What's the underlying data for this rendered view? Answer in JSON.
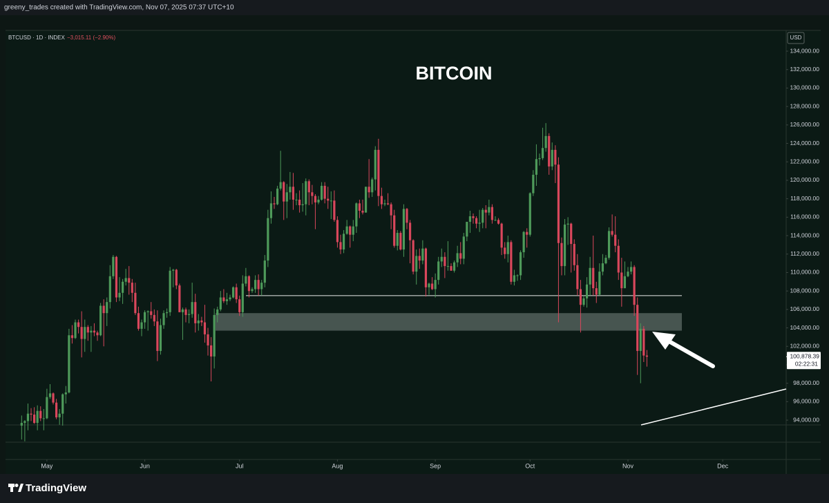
{
  "header": {
    "credit": "greeny_trades created with TradingView.com, Nov 07, 2025 07:37 UTC+10",
    "symbol": "BTCUSD · 1D · INDEX",
    "change": "−3,015.11 (−2.90%)",
    "currency": "USD",
    "countdown": "02:22:31",
    "brand": "TradingView"
  },
  "chart_data": {
    "type": "candlestick",
    "title": "BITCOIN",
    "up_color": "#4e9a5a",
    "down_color": "#d9475c",
    "xlim": [
      -5.1,
      242.1
    ],
    "xticks": [
      {
        "value": 8,
        "label": "May"
      },
      {
        "value": 39,
        "label": "Jun"
      },
      {
        "value": 69,
        "label": "Jul"
      },
      {
        "value": 100,
        "label": "Aug"
      },
      {
        "value": 131,
        "label": "Sep"
      },
      {
        "value": 161,
        "label": "Oct"
      },
      {
        "value": 192,
        "label": "Nov"
      },
      {
        "value": 222,
        "label": "Dec"
      }
    ],
    "ylim": [
      93480,
      136250
    ],
    "yticks": [
      {
        "value": 94000,
        "label": "94,000.00"
      },
      {
        "value": 96000,
        "label": "96,000.00"
      },
      {
        "value": 98000,
        "label": "98,000.00"
      },
      {
        "value": 100000,
        "label": "100,000.00"
      },
      {
        "value": 102000,
        "label": "102,000.00"
      },
      {
        "value": 104000,
        "label": "104,000.00"
      },
      {
        "value": 106000,
        "label": "106,000.00"
      },
      {
        "value": 108000,
        "label": "108,000.00"
      },
      {
        "value": 110000,
        "label": "110,000.00"
      },
      {
        "value": 112000,
        "label": "112,000.00"
      },
      {
        "value": 114000,
        "label": "114,000.00"
      },
      {
        "value": 116000,
        "label": "116,000.00"
      },
      {
        "value": 118000,
        "label": "118,000.00"
      },
      {
        "value": 120000,
        "label": "120,000.00"
      },
      {
        "value": 122000,
        "label": "122,000.00"
      },
      {
        "value": 124000,
        "label": "124,000.00"
      },
      {
        "value": 126000,
        "label": "126,000.00"
      },
      {
        "value": 128000,
        "label": "128,000.00"
      },
      {
        "value": 130000,
        "label": "130,000.00"
      },
      {
        "value": 132000,
        "label": "132,000.00"
      },
      {
        "value": 134000,
        "label": "134,000.00"
      }
    ],
    "last_price": {
      "value": 100878.39,
      "label": "100,878.39"
    },
    "hline": 107500,
    "zone": [
      103700,
      105600
    ],
    "candles": [
      [
        93400,
        94500,
        91900,
        93700
      ],
      [
        93700,
        94000,
        91700,
        93900
      ],
      [
        93900,
        95800,
        92900,
        94700
      ],
      [
        94700,
        95300,
        93900,
        94600
      ],
      [
        94600,
        95400,
        93600,
        93700
      ],
      [
        93700,
        95600,
        92900,
        95000
      ],
      [
        95000,
        95500,
        93900,
        94200
      ],
      [
        94200,
        95200,
        92900,
        94200
      ],
      [
        94200,
        97400,
        94100,
        96500
      ],
      [
        96500,
        97900,
        96300,
        96900
      ],
      [
        96900,
        97000,
        95700,
        95900
      ],
      [
        95900,
        96300,
        94100,
        94300
      ],
      [
        94300,
        95200,
        93500,
        94700
      ],
      [
        94700,
        96900,
        93400,
        96800
      ],
      [
        96800,
        97700,
        95800,
        97000
      ],
      [
        97000,
        103900,
        96900,
        103200
      ],
      [
        103200,
        104300,
        102300,
        102900
      ],
      [
        102900,
        104900,
        102800,
        104600
      ],
      [
        104600,
        104900,
        103400,
        104100
      ],
      [
        104100,
        105800,
        100800,
        102800
      ],
      [
        102800,
        104900,
        101400,
        104100
      ],
      [
        104100,
        104300,
        102600,
        103500
      ],
      [
        103500,
        104200,
        101400,
        103700
      ],
      [
        103700,
        104500,
        103100,
        103500
      ],
      [
        103500,
        103700,
        102600,
        103200
      ],
      [
        103200,
        106700,
        103100,
        106400
      ],
      [
        106400,
        107100,
        102000,
        105600
      ],
      [
        105600,
        107300,
        104200,
        106800
      ],
      [
        106800,
        110800,
        106100,
        109600
      ],
      [
        109600,
        111900,
        109300,
        111700
      ],
      [
        111700,
        111800,
        106800,
        107300
      ],
      [
        107300,
        109500,
        106900,
        107800
      ],
      [
        107800,
        109300,
        106600,
        109000
      ],
      [
        109000,
        110400,
        108600,
        109400
      ],
      [
        109400,
        110700,
        107600,
        108900
      ],
      [
        108900,
        109300,
        106800,
        107800
      ],
      [
        107800,
        108900,
        105400,
        105600
      ],
      [
        105600,
        106300,
        103700,
        103900
      ],
      [
        103900,
        104900,
        103100,
        104600
      ],
      [
        104600,
        105900,
        103900,
        105700
      ],
      [
        105700,
        105900,
        103700,
        105800
      ],
      [
        105800,
        106800,
        105000,
        105400
      ],
      [
        105400,
        106000,
        104200,
        104700
      ],
      [
        104700,
        105900,
        100400,
        101500
      ],
      [
        101500,
        105000,
        101100,
        104300
      ],
      [
        104300,
        105900,
        103900,
        105600
      ],
      [
        105600,
        106100,
        105100,
        105700
      ],
      [
        105700,
        110600,
        105300,
        110200
      ],
      [
        110200,
        110400,
        108400,
        110300
      ],
      [
        110300,
        110400,
        108200,
        108600
      ],
      [
        108600,
        108800,
        105700,
        105700
      ],
      [
        105700,
        106200,
        102700,
        106000
      ],
      [
        106000,
        106200,
        104600,
        105400
      ],
      [
        105400,
        106000,
        104500,
        105500
      ],
      [
        105500,
        108900,
        105100,
        106800
      ],
      [
        106800,
        107700,
        103500,
        104500
      ],
      [
        104500,
        105500,
        103700,
        104800
      ],
      [
        104800,
        105200,
        104200,
        104600
      ],
      [
        104600,
        106500,
        102400,
        103300
      ],
      [
        103300,
        104000,
        101000,
        102100
      ],
      [
        102100,
        103000,
        98200,
        100900
      ],
      [
        100900,
        106100,
        99600,
        105400
      ],
      [
        105400,
        106300,
        104600,
        106000
      ],
      [
        106000,
        108000,
        105800,
        107300
      ],
      [
        107300,
        108200,
        106700,
        106900
      ],
      [
        106900,
        107800,
        106500,
        107100
      ],
      [
        107100,
        107600,
        106900,
        107300
      ],
      [
        107300,
        108500,
        107200,
        108400
      ],
      [
        108400,
        108800,
        106700,
        107100
      ],
      [
        107100,
        107500,
        105300,
        105700
      ],
      [
        105700,
        109700,
        105200,
        108800
      ],
      [
        108800,
        110500,
        108500,
        109600
      ],
      [
        109600,
        109700,
        107300,
        108000
      ],
      [
        108000,
        108400,
        107800,
        108200
      ],
      [
        108200,
        109700,
        107800,
        109200
      ],
      [
        109200,
        109800,
        107500,
        108200
      ],
      [
        108200,
        109200,
        107500,
        108900
      ],
      [
        108900,
        111900,
        108400,
        111300
      ],
      [
        111300,
        116800,
        110600,
        115900
      ],
      [
        115900,
        118800,
        115300,
        117500
      ],
      [
        117500,
        118200,
        116900,
        117400
      ],
      [
        117400,
        119400,
        117300,
        119100
      ],
      [
        119100,
        123200,
        118900,
        119800
      ],
      [
        119800,
        119900,
        115700,
        117700
      ],
      [
        117700,
        119600,
        115900,
        118700
      ],
      [
        118700,
        120900,
        117900,
        119300
      ],
      [
        119300,
        120800,
        116800,
        117900
      ],
      [
        117900,
        118600,
        117300,
        117900
      ],
      [
        117900,
        118900,
        116500,
        117300
      ],
      [
        117300,
        119700,
        116600,
        117400
      ],
      [
        117400,
        120200,
        116200,
        119900
      ],
      [
        119900,
        120100,
        117300,
        118700
      ],
      [
        118700,
        119500,
        117400,
        118300
      ],
      [
        118300,
        118500,
        114700,
        117600
      ],
      [
        117600,
        118300,
        117400,
        117900
      ],
      [
        117900,
        119800,
        117800,
        119400
      ],
      [
        119400,
        119800,
        117500,
        118000
      ],
      [
        118000,
        119300,
        116900,
        117800
      ],
      [
        117800,
        118800,
        115800,
        117800
      ],
      [
        117800,
        118900,
        115500,
        115700
      ],
      [
        115700,
        116100,
        112700,
        113300
      ],
      [
        113300,
        114100,
        112000,
        112500
      ],
      [
        112500,
        114600,
        112100,
        114200
      ],
      [
        114200,
        115700,
        114100,
        115000
      ],
      [
        115000,
        115100,
        112700,
        114100
      ],
      [
        114100,
        115700,
        113400,
        115000
      ],
      [
        115000,
        117600,
        114300,
        117500
      ],
      [
        117500,
        117900,
        115900,
        116700
      ],
      [
        116700,
        117900,
        116300,
        116500
      ],
      [
        116500,
        119300,
        116500,
        119300
      ],
      [
        119300,
        122300,
        118100,
        118700
      ],
      [
        118700,
        120300,
        118200,
        120100
      ],
      [
        120100,
        123700,
        118900,
        123300
      ],
      [
        123300,
        124500,
        117200,
        118300
      ],
      [
        118300,
        119200,
        116900,
        117400
      ],
      [
        117400,
        117900,
        117200,
        117500
      ],
      [
        117500,
        118600,
        117300,
        117400
      ],
      [
        117400,
        117600,
        114700,
        116200
      ],
      [
        116200,
        116800,
        112700,
        112900
      ],
      [
        112900,
        114600,
        112400,
        114300
      ],
      [
        114300,
        114500,
        112400,
        112500
      ],
      [
        112500,
        117400,
        111700,
        116900
      ],
      [
        116900,
        117000,
        114700,
        115400
      ],
      [
        115400,
        115700,
        111000,
        113500
      ],
      [
        113500,
        113600,
        109800,
        110100
      ],
      [
        110100,
        112500,
        108700,
        111800
      ],
      [
        111800,
        112600,
        110400,
        111300
      ],
      [
        111300,
        113500,
        110900,
        112600
      ],
      [
        112600,
        112700,
        107400,
        108400
      ],
      [
        108400,
        108900,
        107600,
        108800
      ],
      [
        108800,
        109500,
        108100,
        108200
      ],
      [
        108200,
        109900,
        107300,
        109200
      ],
      [
        109200,
        111700,
        108700,
        111200
      ],
      [
        111200,
        112600,
        110600,
        111700
      ],
      [
        111700,
        112200,
        109400,
        110700
      ],
      [
        110700,
        113400,
        110200,
        110700
      ],
      [
        110700,
        111000,
        110200,
        110200
      ],
      [
        110200,
        111300,
        110000,
        111100
      ],
      [
        111100,
        112900,
        110600,
        112100
      ],
      [
        112100,
        113300,
        110900,
        111500
      ],
      [
        111500,
        114300,
        110900,
        113900
      ],
      [
        113900,
        115500,
        113400,
        115500
      ],
      [
        115500,
        116700,
        114300,
        116100
      ],
      [
        116100,
        116400,
        115300,
        115900
      ],
      [
        115900,
        116100,
        114800,
        115300
      ],
      [
        115300,
        116800,
        114400,
        115400
      ],
      [
        115400,
        117000,
        114800,
        116800
      ],
      [
        116800,
        117300,
        114800,
        116500
      ],
      [
        116500,
        117900,
        116200,
        117100
      ],
      [
        117100,
        117400,
        115300,
        115700
      ],
      [
        115700,
        116100,
        115600,
        115700
      ],
      [
        115700,
        115900,
        115200,
        115300
      ],
      [
        115300,
        115400,
        111900,
        112700
      ],
      [
        112700,
        113300,
        111500,
        112000
      ],
      [
        112000,
        114000,
        111100,
        113300
      ],
      [
        113300,
        113500,
        108700,
        109000
      ],
      [
        109000,
        110300,
        108600,
        109700
      ],
      [
        109700,
        109800,
        109100,
        109700
      ],
      [
        109700,
        112400,
        109200,
        112200
      ],
      [
        112200,
        114500,
        111600,
        114400
      ],
      [
        114400,
        114800,
        112700,
        114100
      ],
      [
        114100,
        118700,
        113900,
        118600
      ],
      [
        118600,
        121100,
        118300,
        120600
      ],
      [
        120600,
        123900,
        119400,
        122300
      ],
      [
        122300,
        122900,
        121600,
        122400
      ],
      [
        122400,
        125700,
        122200,
        123500
      ],
      [
        123500,
        126200,
        123100,
        124800
      ],
      [
        124800,
        125100,
        120600,
        121500
      ],
      [
        121500,
        124100,
        121100,
        123300
      ],
      [
        123300,
        123800,
        119700,
        121700
      ],
      [
        121700,
        122500,
        104600,
        113200
      ],
      [
        113200,
        113800,
        109700,
        110700
      ],
      [
        110700,
        115800,
        109700,
        115200
      ],
      [
        115200,
        116000,
        113000,
        115300
      ],
      [
        115300,
        115400,
        110000,
        113100
      ],
      [
        113100,
        113600,
        110200,
        110800
      ],
      [
        110800,
        112000,
        107500,
        108200
      ],
      [
        108200,
        109200,
        103500,
        106500
      ],
      [
        106500,
        107500,
        106300,
        107200
      ],
      [
        107200,
        109500,
        106200,
        108700
      ],
      [
        108700,
        111700,
        107500,
        110500
      ],
      [
        110500,
        114000,
        107500,
        108300
      ],
      [
        108300,
        109000,
        106700,
        107600
      ],
      [
        107600,
        111000,
        107500,
        110100
      ],
      [
        110100,
        112000,
        109700,
        111000
      ],
      [
        111000,
        111900,
        110900,
        111600
      ],
      [
        111600,
        114900,
        111400,
        114500
      ],
      [
        114500,
        116300,
        113900,
        114100
      ],
      [
        114100,
        116100,
        112200,
        112900
      ],
      [
        112900,
        113600,
        109200,
        110000
      ],
      [
        110000,
        111600,
        106300,
        108300
      ],
      [
        108300,
        111200,
        108300,
        109600
      ],
      [
        109600,
        110600,
        109500,
        110100
      ],
      [
        110100,
        111200,
        109800,
        110600
      ],
      [
        110600,
        110800,
        105300,
        106500
      ],
      [
        106500,
        107300,
        98900,
        101500
      ],
      [
        101500,
        104500,
        98000,
        103900
      ],
      [
        103900,
        104200,
        100300,
        101000
      ],
      [
        101000,
        101600,
        99800,
        100878.39
      ]
    ]
  }
}
